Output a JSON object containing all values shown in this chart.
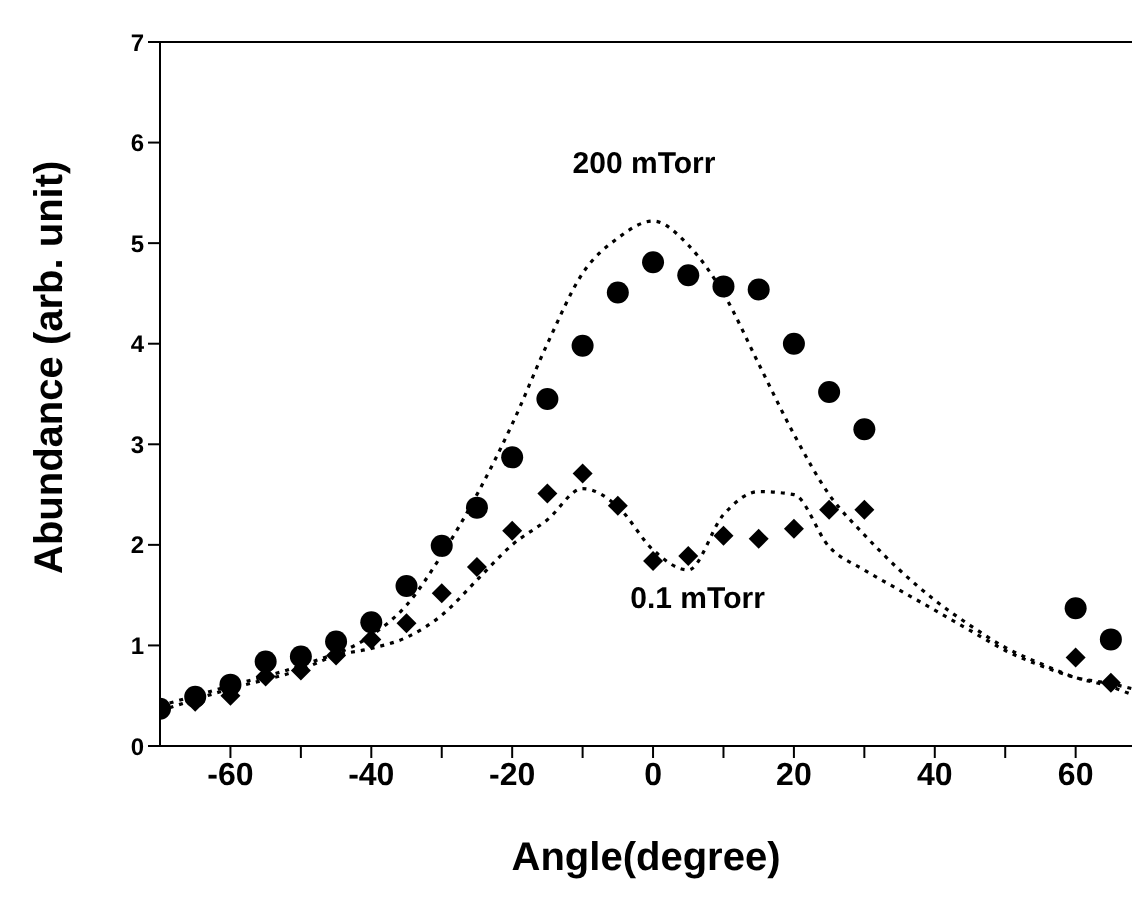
{
  "chart_data": {
    "type": "scatter",
    "xlabel": "Angle(degree)",
    "ylabel": "Abundance (arb. unit)",
    "xlim": [
      -70,
      68
    ],
    "ylim": [
      0,
      7
    ],
    "xticks": [
      -60,
      {
        "value": -50,
        "label": null
      },
      -40,
      {
        "value": -30,
        "label": null
      },
      -20,
      {
        "value": -10,
        "label": null
      },
      0,
      {
        "value": 10,
        "label": null
      },
      20,
      {
        "value": 30,
        "label": null
      },
      40,
      {
        "value": 50,
        "label": null
      },
      60
    ],
    "yticks": [
      0,
      1,
      2,
      3,
      4,
      5,
      6,
      7
    ],
    "grid": false,
    "legend": false,
    "series": [
      {
        "name": "200 mTorr",
        "marker": "circle",
        "color": "#000000",
        "x": [
          -70,
          -65,
          -60,
          -55,
          -50,
          -45,
          -40,
          -35,
          -30,
          -25,
          -20,
          -15,
          -10,
          -5,
          0,
          5,
          10,
          15,
          20,
          25,
          30,
          60,
          65
        ],
        "values": [
          0.37,
          0.49,
          0.61,
          0.84,
          0.89,
          1.04,
          1.23,
          1.59,
          1.99,
          2.37,
          2.87,
          3.45,
          3.98,
          4.51,
          4.81,
          4.68,
          4.57,
          4.54,
          4.0,
          3.52,
          3.15,
          1.37,
          1.06
        ]
      },
      {
        "name": "0.1 mTorr",
        "marker": "diamond",
        "color": "#000000",
        "x": [
          -65,
          -60,
          -55,
          -50,
          -45,
          -40,
          -35,
          -30,
          -25,
          -20,
          -15,
          -10,
          -5,
          0,
          5,
          10,
          15,
          20,
          25,
          30,
          60,
          65
        ],
        "values": [
          0.44,
          0.5,
          0.69,
          0.75,
          0.9,
          1.06,
          1.22,
          1.52,
          1.78,
          2.14,
          2.51,
          2.71,
          2.39,
          1.84,
          1.89,
          2.09,
          2.06,
          2.16,
          2.35,
          2.35,
          0.88,
          0.63
        ]
      },
      {
        "type": "line",
        "line_style": "dotted",
        "marker": "none",
        "color": "#000000",
        "x": [
          -70,
          -60,
          -50,
          -40,
          -35,
          -30,
          -25,
          -20,
          -15,
          -10,
          -5,
          0,
          5,
          10,
          15,
          20,
          25,
          30,
          35,
          40,
          45,
          50,
          55,
          60,
          65,
          68
        ],
        "values": [
          0.4,
          0.6,
          0.8,
          1.1,
          1.4,
          1.9,
          2.5,
          3.2,
          4.0,
          4.7,
          5.05,
          5.22,
          4.98,
          4.5,
          3.8,
          3.1,
          2.5,
          2.1,
          1.75,
          1.45,
          1.2,
          0.98,
          0.82,
          0.68,
          0.59,
          0.51
        ]
      },
      {
        "type": "line",
        "line_style": "dotted",
        "marker": "none",
        "color": "#000000",
        "x": [
          -70,
          -60,
          -50,
          -45,
          -40,
          -35,
          -30,
          -25,
          -20,
          -15,
          -10,
          -5,
          0,
          5,
          10,
          15,
          20,
          25,
          30,
          35,
          40,
          45,
          50,
          55,
          60,
          65,
          68
        ],
        "values": [
          0.35,
          0.57,
          0.76,
          0.9,
          0.97,
          1.08,
          1.3,
          1.65,
          2.0,
          2.25,
          2.56,
          2.38,
          1.95,
          1.75,
          2.3,
          2.53,
          2.5,
          1.98,
          1.75,
          1.55,
          1.35,
          1.15,
          0.95,
          0.8,
          0.68,
          0.62,
          0.57
        ]
      }
    ]
  }
}
